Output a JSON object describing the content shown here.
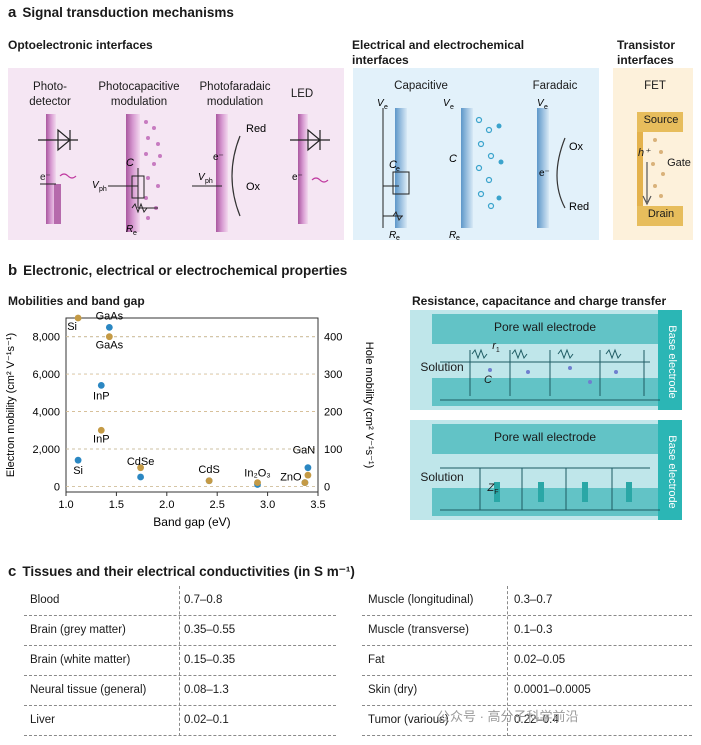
{
  "panel_a": {
    "letter": "a",
    "title": "Signal transduction mechanisms",
    "opto": {
      "heading": "Optoelectronic interfaces",
      "labels": [
        "Photo-\ndetector",
        "Photocapacitive\nmodulation",
        "Photofaradaic\nmodulation",
        "LED"
      ],
      "c_label": "C",
      "vph": "V",
      "vph_sub": "ph",
      "re": "R",
      "re_sub": "e",
      "e_minus": "e⁻",
      "red": "Red",
      "ox": "Ox"
    },
    "elec": {
      "heading": "Electrical and electrochemical\ninterfaces",
      "capacitive": "Capacitive",
      "faradaic": "Faradaic",
      "ve": "V",
      "ve_sub": "e",
      "c_label": "C",
      "c_sub": "e",
      "re": "R",
      "re_sub": "e",
      "e_minus": "e⁻",
      "ox": "Ox",
      "red": "Red"
    },
    "trans": {
      "heading": "Transistor\ninterfaces",
      "fet": "FET",
      "source": "Source",
      "gate": "Gate",
      "drain": "Drain",
      "hplus": "h⁺"
    }
  },
  "panel_b": {
    "letter": "b",
    "title": "Electronic, electrical or electrochemical properties",
    "mob_heading": "Mobilities and band gap",
    "res_heading": "Resistance, capacitance and charge transfer",
    "res": {
      "pore_wall": "Pore wall electrode",
      "base_electrode": "Base electrode",
      "solution": "Solution",
      "r1": "r",
      "r1_sub": "1",
      "c": "C",
      "zf": "Z",
      "zf_sub": "F"
    }
  },
  "chart_data": {
    "type": "scatter",
    "title": "Mobilities and band gap",
    "xlabel": "Band gap (eV)",
    "ylabel_left": "Electron mobility (cm² V⁻¹s⁻¹)",
    "ylabel_right": "Hole mobility (cm² V⁻¹s⁻¹)",
    "xlim": [
      1.0,
      3.5
    ],
    "ylim_left": [
      -300,
      9000
    ],
    "ylim_right": [
      -15,
      450
    ],
    "xticks": [
      "1.0",
      "1.5",
      "2.0",
      "2.5",
      "3.0",
      "3.5"
    ],
    "yticks_left": [
      "0",
      "2,000",
      "4,000",
      "6,000",
      "8,000"
    ],
    "yticks_right": [
      "0",
      "100",
      "200",
      "300",
      "400"
    ],
    "series": [
      {
        "axis": "left",
        "color": "#2b87c2",
        "points": [
          {
            "label": "GaAs",
            "x": 1.43,
            "y": 8500
          },
          {
            "label": "InP",
            "x": 1.35,
            "y": 5400
          },
          {
            "label": "Si",
            "x": 1.12,
            "y": 1400
          },
          {
            "label": "CdSe",
            "x": 1.74,
            "y": 500
          },
          {
            "label": "CdS",
            "x": 2.42,
            "y": 300
          },
          {
            "label": "In₂O₃",
            "x": 2.9,
            "y": 100
          },
          {
            "label": "ZnO",
            "x": 3.37,
            "y": 200
          },
          {
            "label": "GaN",
            "x": 3.4,
            "y": 1000
          }
        ]
      },
      {
        "axis": "right",
        "color": "#c49a45",
        "points": [
          {
            "label": "Si",
            "x": 1.12,
            "y": 450
          },
          {
            "label": "GaAs",
            "x": 1.43,
            "y": 400
          },
          {
            "label": "InP",
            "x": 1.35,
            "y": 150
          },
          {
            "label": "CdSe",
            "x": 1.74,
            "y": 50
          },
          {
            "label": "CdS",
            "x": 2.42,
            "y": 15
          },
          {
            "label": "In₂O₃",
            "x": 2.9,
            "y": 10
          },
          {
            "label": "ZnO",
            "x": 3.37,
            "y": 10
          },
          {
            "label": "GaN",
            "x": 3.4,
            "y": 30
          }
        ]
      }
    ]
  },
  "panel_c": {
    "letter": "c",
    "title": "Tissues and their electrical conductivities (in S m⁻¹)",
    "left": [
      {
        "name": "Blood",
        "value": "0.7–0.8"
      },
      {
        "name": "Brain (grey matter)",
        "value": "0.35–0.55"
      },
      {
        "name": "Brain (white matter)",
        "value": "0.15–0.35"
      },
      {
        "name": "Neural tissue (general)",
        "value": "0.08–1.3"
      },
      {
        "name": "Liver",
        "value": "0.02–0.1"
      }
    ],
    "right": [
      {
        "name": "Muscle (longitudinal)",
        "value": "0.3–0.7"
      },
      {
        "name": "Muscle (transverse)",
        "value": "0.1–0.3"
      },
      {
        "name": "Fat",
        "value": "0.02–0.05"
      },
      {
        "name": "Skin (dry)",
        "value": "0.0001–0.0005"
      },
      {
        "name": "Tumor (various)",
        "value": "0.22–0.4"
      }
    ]
  },
  "watermark": "公众号 · 高分子科学前沿"
}
